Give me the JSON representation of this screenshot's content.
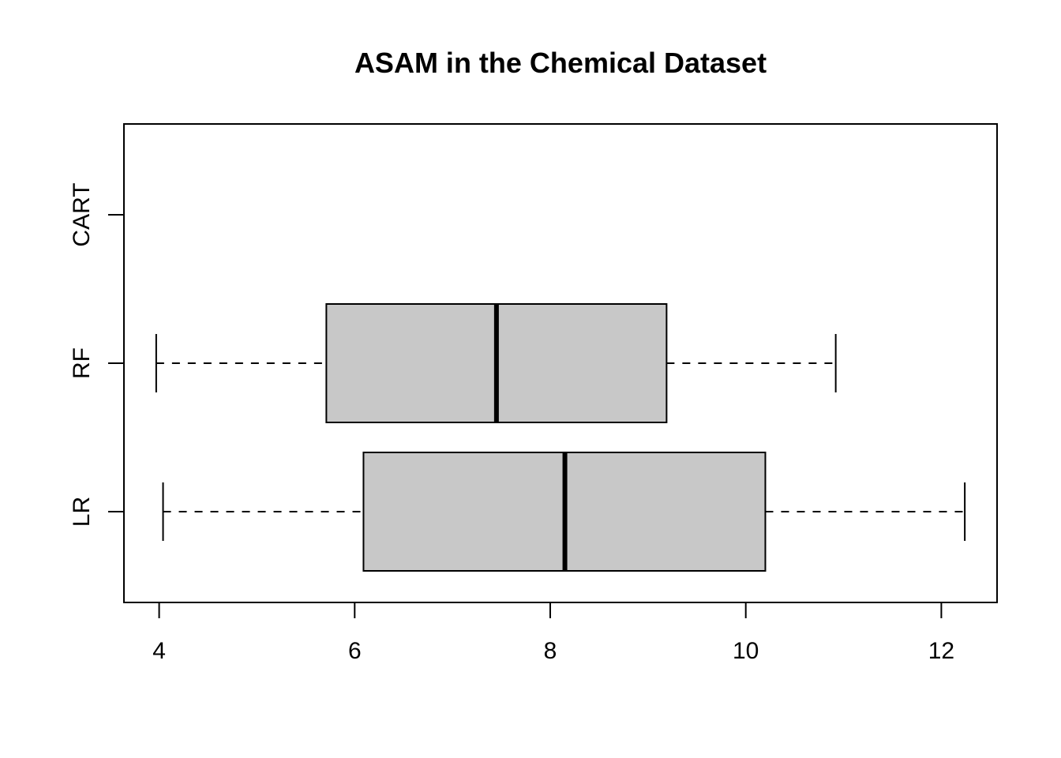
{
  "chart_data": {
    "type": "boxplot",
    "orientation": "horizontal",
    "title": "ASAM in the Chemical Dataset",
    "xlabel": "",
    "ylabel": "",
    "categories": [
      "LR",
      "RF",
      "CART"
    ],
    "series": [
      {
        "category": "LR",
        "min": 4.04,
        "q1": 6.09,
        "median": 8.15,
        "q3": 10.2,
        "max": 12.24
      },
      {
        "category": "RF",
        "min": 3.97,
        "q1": 5.71,
        "median": 7.45,
        "q3": 9.19,
        "max": 10.92
      },
      {
        "category": "CART",
        "values_shown": false
      }
    ],
    "xlim": [
      3.64,
      12.57
    ],
    "x_ticks": [
      4,
      6,
      8,
      10,
      12
    ],
    "box_fill": "#c8c8c8",
    "line_color": "#000000",
    "grid": false,
    "legend": "none"
  }
}
